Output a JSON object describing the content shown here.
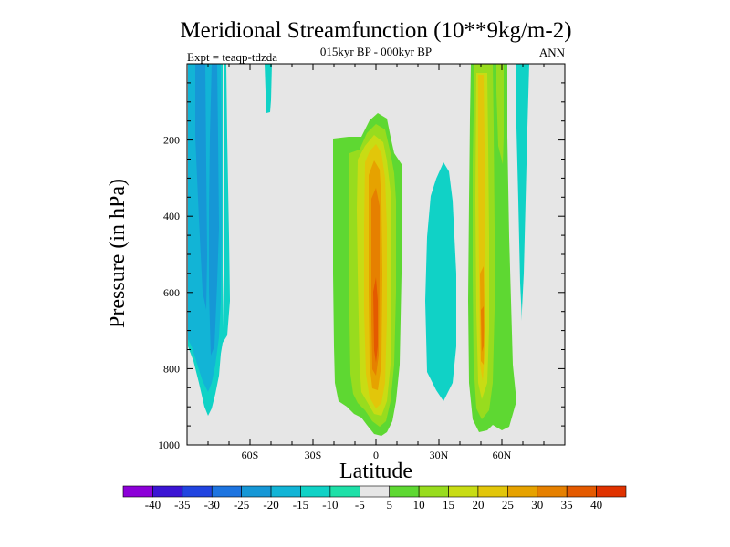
{
  "chart_data": {
    "type": "contour",
    "title": "Meridional Streamfunction (10**9kg/m-2)",
    "subtitle": "015kyr BP - 000kyr BP",
    "left_label": "Expt = teaqp-tdzda",
    "right_label": "ANN",
    "xlabel": "Latitude",
    "ylabel": "Pressure (in hPa)",
    "xlim": [
      -90,
      90
    ],
    "ylim": [
      0,
      1000
    ],
    "y_inverted": true,
    "x_ticks": [
      {
        "value": -60,
        "label": "60S"
      },
      {
        "value": -30,
        "label": "30S"
      },
      {
        "value": 0,
        "label": "0"
      },
      {
        "value": 30,
        "label": "30N"
      },
      {
        "value": 60,
        "label": "60N"
      }
    ],
    "y_ticks": [
      {
        "value": 200,
        "label": "200"
      },
      {
        "value": 400,
        "label": "400"
      },
      {
        "value": 600,
        "label": "600"
      },
      {
        "value": 800,
        "label": "800"
      },
      {
        "value": 1000,
        "label": "1000"
      }
    ],
    "colorbar": {
      "labels": [
        "-40",
        "-35",
        "-30",
        "-25",
        "-20",
        "-15",
        "-10",
        "-5",
        "5",
        "10",
        "15",
        "20",
        "25",
        "30",
        "35",
        "40"
      ],
      "colors": [
        "#8c00d8",
        "#3b14d4",
        "#2144e0",
        "#1d74e0",
        "#1697d6",
        "#12b4d6",
        "#10d2c6",
        "#1ee0a8",
        "#e6e6e6",
        "#5ed832",
        "#98dc1e",
        "#c8dc14",
        "#e2c60a",
        "#e6a200",
        "#e68000",
        "#e45a00",
        "#e03200"
      ]
    },
    "features": [
      {
        "name": "southern-hemisphere-negative-cell",
        "lat_range": [
          -88,
          -72
        ],
        "pressure_range": [
          10,
          930
        ],
        "min_value": -15
      },
      {
        "name": "southern-upper-thin-cell",
        "lat_range": [
          -53,
          -51
        ],
        "pressure_range": [
          10,
          120
        ],
        "min_value": -10
      },
      {
        "name": "tropical-positive-cell",
        "lat_range": [
          -18,
          10
        ],
        "pressure_range": [
          80,
          960
        ],
        "max_value": 35
      },
      {
        "name": "northern-subtropical-negative-cell",
        "lat_range": [
          20,
          36
        ],
        "pressure_range": [
          290,
          880
        ],
        "min_value": -10
      },
      {
        "name": "northern-positive-cell",
        "lat_range": [
          45,
          58
        ],
        "pressure_range": [
          10,
          970
        ],
        "max_value": 30
      },
      {
        "name": "northern-high-lat-negative-cell",
        "lat_range": [
          65,
          72
        ],
        "pressure_range": [
          10,
          680
        ],
        "min_value": -10
      }
    ]
  }
}
